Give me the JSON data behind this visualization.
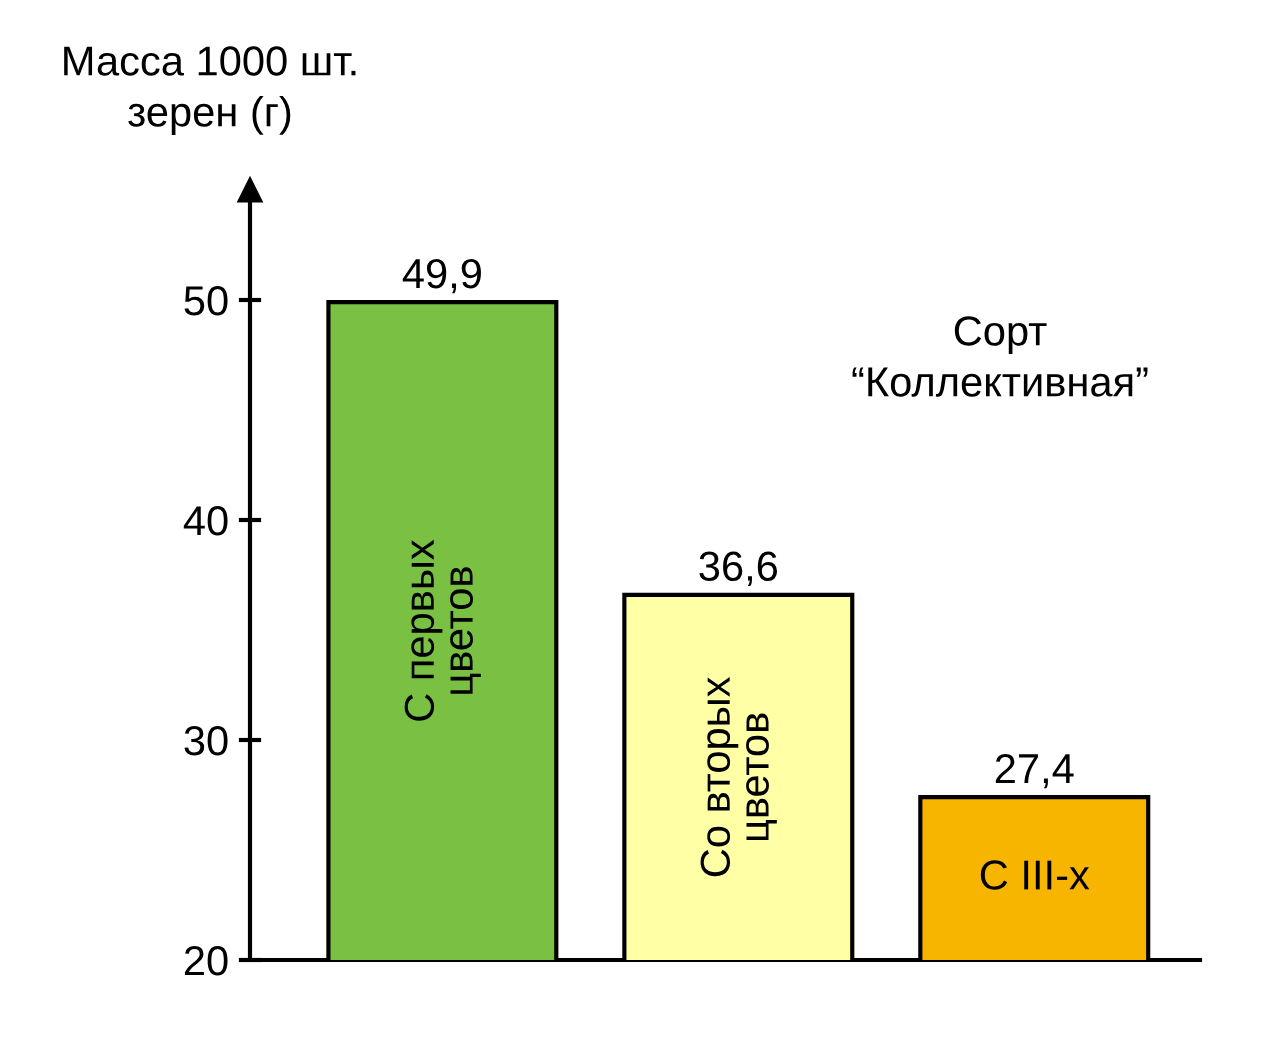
{
  "chart_data": {
    "type": "bar",
    "ylabel": "Масса 1000 шт.\nзерен (г)",
    "categories": [
      "С первых\nцветов",
      "Со вторых\nцветов",
      "С III-х"
    ],
    "values": [
      49.9,
      36.6,
      27.4
    ],
    "value_labels": [
      "49,9",
      "36,6",
      "27,4"
    ],
    "colors": [
      "#7ac143",
      "#ffffa6",
      "#f7b500"
    ],
    "ylim": [
      20,
      55
    ],
    "yticks": [
      20,
      30,
      40,
      50
    ],
    "annotations": [
      "Сорт\n“Коллективная”"
    ],
    "grid": false,
    "legend": false
  }
}
